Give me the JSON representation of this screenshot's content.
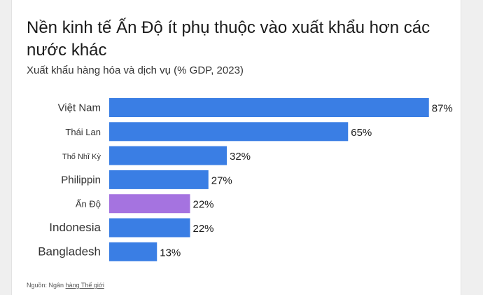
{
  "title": "Nền kinh tế Ấn Độ ít phụ thuộc vào xuất khẩu hơn các nước khác",
  "subtitle": "Xuất khẩu hàng hóa và dịch vụ (% GDP, 2023)",
  "source": {
    "prefix": "Nguồn: Ngân ",
    "link": "hàng Thế giới"
  },
  "colors": {
    "default_bar": "#3a7ee4",
    "highlight_bar": "#a573e0"
  },
  "chart_data": {
    "type": "bar",
    "orientation": "horizontal",
    "categories": [
      "Việt Nam",
      "Thái Lan",
      "Thổ Nhĩ Kỳ",
      "Philippin",
      "Ấn Độ",
      "Indonesia",
      "Bangladesh"
    ],
    "values": [
      87,
      65,
      32,
      27,
      22,
      22,
      13
    ],
    "value_labels": [
      "87%",
      "65%",
      "32%",
      "27%",
      "22%",
      "22%",
      "13%"
    ],
    "highlight": "Ấn Độ",
    "grid": false,
    "legend": "none"
  }
}
